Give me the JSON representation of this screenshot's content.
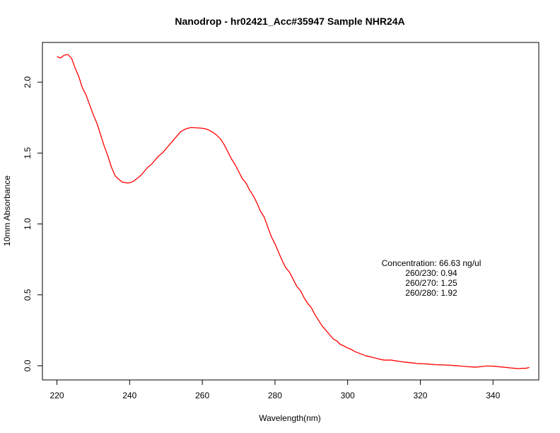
{
  "chart_data": {
    "type": "line",
    "title": "Nanodrop - hr02421_Acc#35947 Sample NHR24A",
    "xlabel": "Wavelength(nm)",
    "ylabel": "10mm Absorbance",
    "xlim": [
      216,
      352.6
    ],
    "ylim": [
      -0.1,
      2.28
    ],
    "xticks": [
      220,
      240,
      260,
      280,
      300,
      320,
      340
    ],
    "yticks": [
      0.0,
      0.5,
      1.0,
      1.5,
      2.0
    ],
    "xtick_labels": [
      "220",
      "240",
      "260",
      "280",
      "300",
      "320",
      "340"
    ],
    "ytick_labels": [
      "0.0",
      "0.5",
      "1.0",
      "1.5",
      "2.0"
    ],
    "grid": false,
    "legend": "none",
    "series": [
      {
        "color": "#ff0000",
        "x": [
          220,
          221,
          222,
          223,
          224,
          225,
          226,
          227,
          228,
          229,
          230,
          231,
          232,
          233,
          234,
          235,
          236,
          237,
          238,
          239,
          240,
          241,
          242,
          243,
          244,
          245,
          246,
          247,
          248,
          249,
          250,
          251,
          252,
          253,
          254,
          255,
          256,
          257,
          258,
          259,
          260,
          261,
          262,
          263,
          264,
          265,
          266,
          267,
          268,
          269,
          270,
          271,
          272,
          273,
          274,
          275,
          276,
          277,
          278,
          279,
          280,
          281,
          282,
          283,
          284,
          285,
          286,
          287,
          288,
          289,
          290,
          291,
          292,
          293,
          294,
          295,
          296,
          297,
          298,
          299,
          300,
          301,
          302,
          303,
          304,
          305,
          306,
          307,
          308,
          309,
          310,
          311,
          312,
          313,
          314,
          315,
          316,
          317,
          318,
          319,
          320,
          321,
          322,
          323,
          324,
          325,
          326,
          327,
          328,
          329,
          330,
          331,
          332,
          333,
          334,
          335,
          336,
          337,
          338,
          339,
          340,
          341,
          342,
          343,
          344,
          345,
          346,
          347,
          348,
          349,
          350
        ],
        "y": [
          2.18,
          2.17,
          2.19,
          2.195,
          2.17,
          2.1,
          2.04,
          1.96,
          1.91,
          1.84,
          1.77,
          1.71,
          1.63,
          1.55,
          1.48,
          1.4,
          1.34,
          1.315,
          1.295,
          1.29,
          1.29,
          1.3,
          1.32,
          1.34,
          1.37,
          1.4,
          1.42,
          1.45,
          1.48,
          1.5,
          1.53,
          1.56,
          1.59,
          1.62,
          1.65,
          1.665,
          1.675,
          1.68,
          1.678,
          1.677,
          1.675,
          1.67,
          1.66,
          1.645,
          1.625,
          1.6,
          1.56,
          1.51,
          1.46,
          1.42,
          1.37,
          1.32,
          1.29,
          1.24,
          1.2,
          1.15,
          1.09,
          1.05,
          0.98,
          0.91,
          0.86,
          0.8,
          0.74,
          0.69,
          0.66,
          0.61,
          0.56,
          0.53,
          0.48,
          0.44,
          0.41,
          0.36,
          0.32,
          0.28,
          0.25,
          0.22,
          0.19,
          0.175,
          0.15,
          0.14,
          0.125,
          0.115,
          0.1,
          0.09,
          0.08,
          0.07,
          0.065,
          0.058,
          0.052,
          0.045,
          0.04,
          0.04,
          0.04,
          0.035,
          0.032,
          0.028,
          0.025,
          0.022,
          0.02,
          0.016,
          0.015,
          0.014,
          0.012,
          0.01,
          0.008,
          0.007,
          0.006,
          0.005,
          0.004,
          0.002,
          0.0,
          -0.002,
          -0.004,
          -0.006,
          -0.008,
          -0.01,
          -0.008,
          -0.005,
          -0.002,
          -0.002,
          -0.003,
          -0.005,
          -0.008,
          -0.01,
          -0.013,
          -0.016,
          -0.018,
          -0.02,
          -0.018,
          -0.018,
          -0.012
        ]
      }
    ],
    "annotations": [
      "Concentration: 66.63 ng/ul",
      "260/230: 0.94",
      "260/270: 1.25",
      "260/280: 1.92"
    ]
  }
}
